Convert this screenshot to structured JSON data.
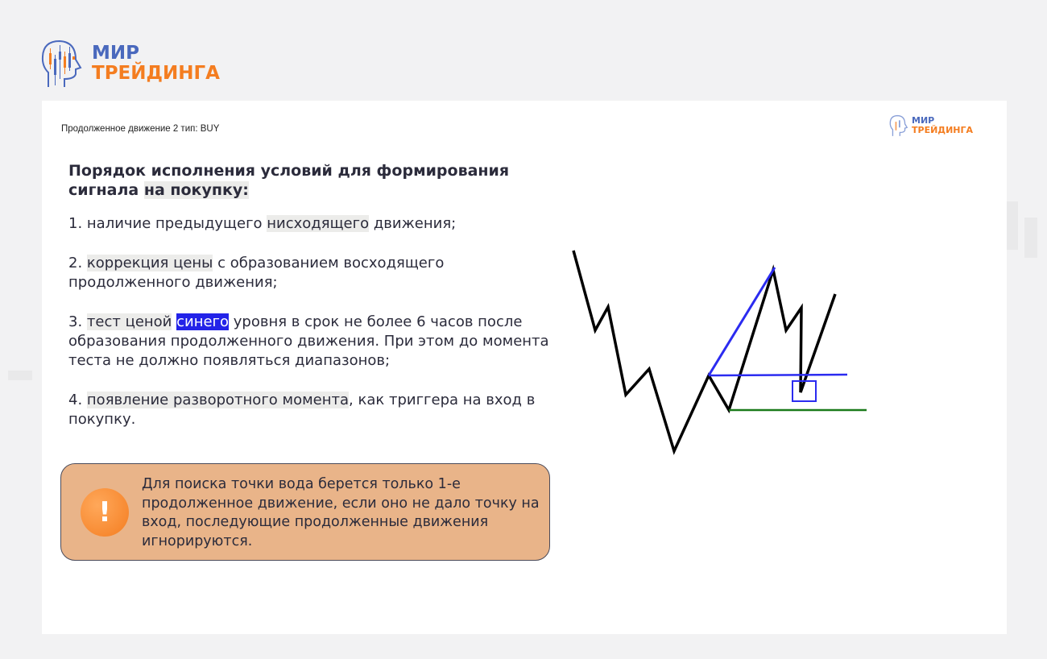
{
  "brand": {
    "line1": "МИР",
    "line2": "ТРЕЙДИНГА",
    "blue": "#4a69bd",
    "orange": "#f47d20"
  },
  "slide": {
    "subtitle": "Продолженное движение 2 тип: BUY",
    "heading": {
      "part1": "Порядок исполнения условий для формирования сигнала ",
      "highlight": "на покупку:"
    },
    "items": [
      {
        "pre": "1. наличие предыдущего ",
        "hl": "нисходящего",
        "post": " движения;"
      },
      {
        "pre": "2. ",
        "hl": "коррекция цены",
        "post": " с образованием восходящего продолженного движения;"
      },
      {
        "pre": "3. ",
        "hl": "тест ценой",
        "blue": "синего",
        "post": " уровня в срок не более 6 часов после образования продолженного движения. При этом до момента теста не должно появляться диапазонов;"
      },
      {
        "pre": "4. ",
        "hl": "появление разворотного момента",
        "post": ", как триггера на вход в покупку."
      }
    ],
    "callout": {
      "icon": "exclamation-icon",
      "text": "Для поиска точки вода берется только 1-е продолженное движение, если оно не дало точку на вход, последующие продолженные движения игнорируются."
    }
  },
  "diagram": {
    "price_color": "#000000",
    "level_color": "#2b2bf0",
    "support_color": "#1a7a1a"
  }
}
